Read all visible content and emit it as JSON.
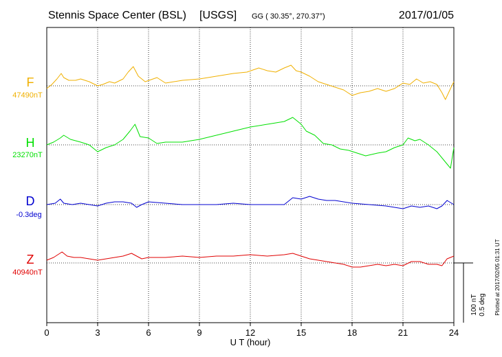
{
  "header": {
    "station": "Stennis Space Center (BSL)",
    "agency": "[USGS]",
    "coords": "GG ( 30.35°, 270.37°)",
    "date": "2017/01/05"
  },
  "plotted_note": "Plotted at 2017/02/05 01:31  UT",
  "scale": {
    "nt": "100 nT",
    "deg": "0.5 deg"
  },
  "colors": {
    "F": "#f0b000",
    "H": "#00e000",
    "D": "#0000d0",
    "Z": "#e00000",
    "grid": "#000000"
  },
  "chart_data": {
    "type": "line",
    "title": "Stennis Space Center (BSL)  [USGS]",
    "xlabel": "U T (hour)",
    "xlim": [
      0,
      24
    ],
    "xticks": [
      0,
      3,
      6,
      9,
      12,
      15,
      18,
      21,
      24
    ],
    "x_tick_labels": [
      "0",
      "3",
      "6",
      "9",
      "12",
      "15",
      "18",
      "21",
      "24"
    ],
    "grid": true,
    "series": [
      {
        "name": "F",
        "baseline": "47490nT",
        "color": "#f0b000",
        "x": [
          0,
          0.3,
          0.6,
          0.85,
          1.0,
          1.3,
          1.7,
          2.0,
          2.5,
          3.0,
          3.3,
          3.7,
          4.0,
          4.5,
          4.8,
          5.1,
          5.4,
          5.8,
          6.5,
          7.0,
          8.0,
          9.0,
          10.0,
          11.0,
          11.8,
          12.5,
          13.0,
          13.5,
          14.0,
          14.4,
          14.7,
          15.0,
          15.5,
          16.0,
          16.5,
          17.0,
          17.5,
          18.0,
          18.5,
          19.0,
          19.5,
          20.0,
          20.5,
          21.0,
          21.4,
          21.8,
          22.2,
          22.6,
          23.0,
          23.3,
          23.5,
          23.8,
          24.0
        ],
        "y": [
          -4,
          2,
          10,
          18,
          12,
          8,
          8,
          10,
          6,
          0,
          2,
          6,
          4,
          10,
          20,
          28,
          14,
          6,
          12,
          4,
          8,
          10,
          14,
          18,
          20,
          26,
          22,
          20,
          26,
          30,
          22,
          20,
          14,
          6,
          2,
          -2,
          -6,
          -14,
          -10,
          -8,
          -4,
          -8,
          -4,
          4,
          2,
          10,
          4,
          6,
          2,
          -10,
          -20,
          -4,
          6
        ]
      },
      {
        "name": "H",
        "baseline": "23270nT",
        "color": "#00e000",
        "x": [
          0,
          0.4,
          0.8,
          1.0,
          1.4,
          2.0,
          2.5,
          3.0,
          3.5,
          4.0,
          4.5,
          4.9,
          5.2,
          5.5,
          6.0,
          6.5,
          7.0,
          8.0,
          9.0,
          10.0,
          11.0,
          12.0,
          13.0,
          14.0,
          14.5,
          14.8,
          15.0,
          15.3,
          15.8,
          16.3,
          16.8,
          17.3,
          17.8,
          18.3,
          18.8,
          19.5,
          20.0,
          20.5,
          21.0,
          21.3,
          21.7,
          22.0,
          22.5,
          23.0,
          23.4,
          23.8,
          24.0
        ],
        "y": [
          0,
          4,
          10,
          14,
          8,
          4,
          0,
          -10,
          -4,
          0,
          8,
          20,
          30,
          12,
          10,
          2,
          4,
          4,
          8,
          14,
          20,
          26,
          30,
          34,
          40,
          34,
          30,
          20,
          14,
          2,
          0,
          -6,
          -8,
          -12,
          -16,
          -12,
          -10,
          -4,
          0,
          10,
          6,
          8,
          0,
          -10,
          -22,
          -34,
          -4
        ]
      },
      {
        "name": "D",
        "baseline": "-0.3deg",
        "color": "#0000d0",
        "x": [
          0,
          0.5,
          0.8,
          1.0,
          1.5,
          2.0,
          2.5,
          3.0,
          3.5,
          4.0,
          4.5,
          5.0,
          5.3,
          5.6,
          6.0,
          7.0,
          8.0,
          9.0,
          10.0,
          11.0,
          12.0,
          13.0,
          14.0,
          14.5,
          15.0,
          15.5,
          16.0,
          16.5,
          17.0,
          18.0,
          19.0,
          20.0,
          21.0,
          21.5,
          22.0,
          22.5,
          23.0,
          23.3,
          23.6,
          24.0
        ],
        "y": [
          0,
          2,
          8,
          2,
          0,
          2,
          0,
          -2,
          2,
          4,
          4,
          2,
          -4,
          0,
          4,
          2,
          0,
          0,
          0,
          2,
          0,
          0,
          0,
          10,
          8,
          12,
          8,
          6,
          6,
          2,
          0,
          -2,
          -6,
          -2,
          -4,
          -2,
          -6,
          -2,
          6,
          0
        ]
      },
      {
        "name": "Z",
        "baseline": "40940nT",
        "color": "#e00000",
        "x": [
          0,
          0.4,
          0.9,
          1.2,
          1.6,
          2.0,
          2.5,
          3.0,
          3.5,
          4.0,
          4.5,
          5.0,
          5.3,
          5.6,
          6.0,
          7.0,
          8.0,
          9.0,
          10.0,
          11.0,
          12.0,
          13.0,
          14.0,
          14.5,
          15.0,
          15.5,
          16.0,
          16.5,
          17.0,
          17.5,
          18.0,
          18.5,
          19.0,
          19.5,
          20.0,
          20.5,
          21.0,
          21.5,
          22.0,
          22.5,
          23.0,
          23.3,
          23.6,
          24.0
        ],
        "y": [
          4,
          8,
          16,
          10,
          8,
          8,
          6,
          4,
          6,
          8,
          10,
          14,
          10,
          6,
          8,
          8,
          10,
          8,
          10,
          10,
          12,
          10,
          12,
          14,
          10,
          6,
          4,
          2,
          0,
          -2,
          -6,
          -6,
          -4,
          -2,
          -4,
          -2,
          -4,
          2,
          2,
          -2,
          -2,
          -4,
          6,
          10
        ]
      }
    ]
  }
}
